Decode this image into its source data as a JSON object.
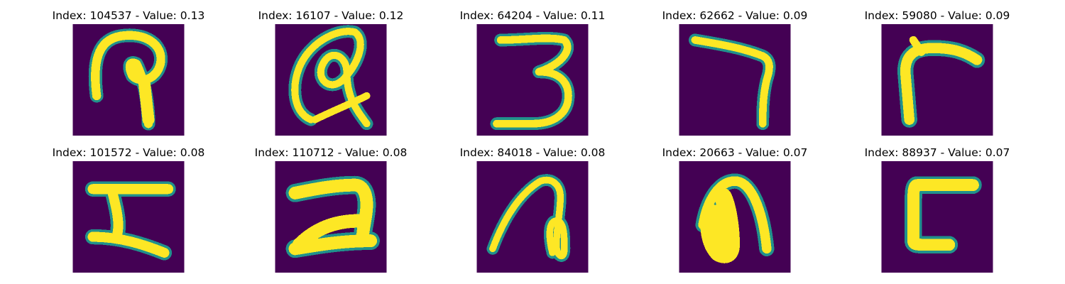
{
  "colormap": {
    "low": "#440154",
    "mid": "#21918c",
    "high": "#fde725"
  },
  "panels": [
    {
      "title": "Index: 104537 - Value: 0.13",
      "glyph": "glyph-104537"
    },
    {
      "title": "Index: 16107 - Value: 0.12",
      "glyph": "glyph-16107"
    },
    {
      "title": "Index: 64204 - Value: 0.11",
      "glyph": "glyph-64204"
    },
    {
      "title": "Index: 62662 - Value: 0.09",
      "glyph": "glyph-62662"
    },
    {
      "title": "Index: 59080 - Value: 0.09",
      "glyph": "glyph-59080"
    },
    {
      "title": "Index: 101572 - Value: 0.08",
      "glyph": "glyph-101572"
    },
    {
      "title": "Index: 110712 - Value: 0.08",
      "glyph": "glyph-110712"
    },
    {
      "title": "Index: 84018 - Value: 0.08",
      "glyph": "glyph-84018"
    },
    {
      "title": "Index: 20663 - Value: 0.07",
      "glyph": "glyph-20663"
    },
    {
      "title": "Index: 88937 - Value: 0.07",
      "glyph": "glyph-88937"
    }
  ]
}
